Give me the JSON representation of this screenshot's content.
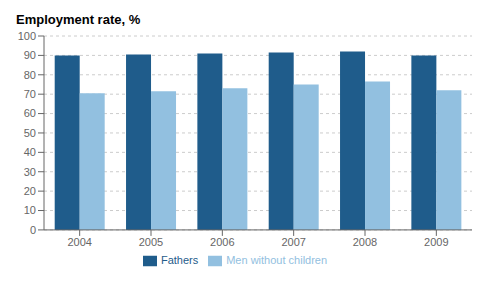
{
  "chart_data": {
    "type": "bar",
    "title": "Employment rate, %",
    "categories": [
      "2004",
      "2005",
      "2006",
      "2007",
      "2008",
      "2009"
    ],
    "series": [
      {
        "name": "Fathers",
        "color": "#1F5C8B",
        "values": [
          90.0,
          90.5,
          91.0,
          91.5,
          92.0,
          90.0
        ]
      },
      {
        "name": "Men without children",
        "color": "#92C0E0",
        "values": [
          70.5,
          71.5,
          73.0,
          75.0,
          76.5,
          72.0
        ]
      }
    ],
    "ylim": [
      0,
      100
    ],
    "yticks": [
      0,
      10,
      20,
      30,
      40,
      50,
      60,
      70,
      80,
      90,
      100
    ],
    "grid": true,
    "legend": "bottom"
  }
}
